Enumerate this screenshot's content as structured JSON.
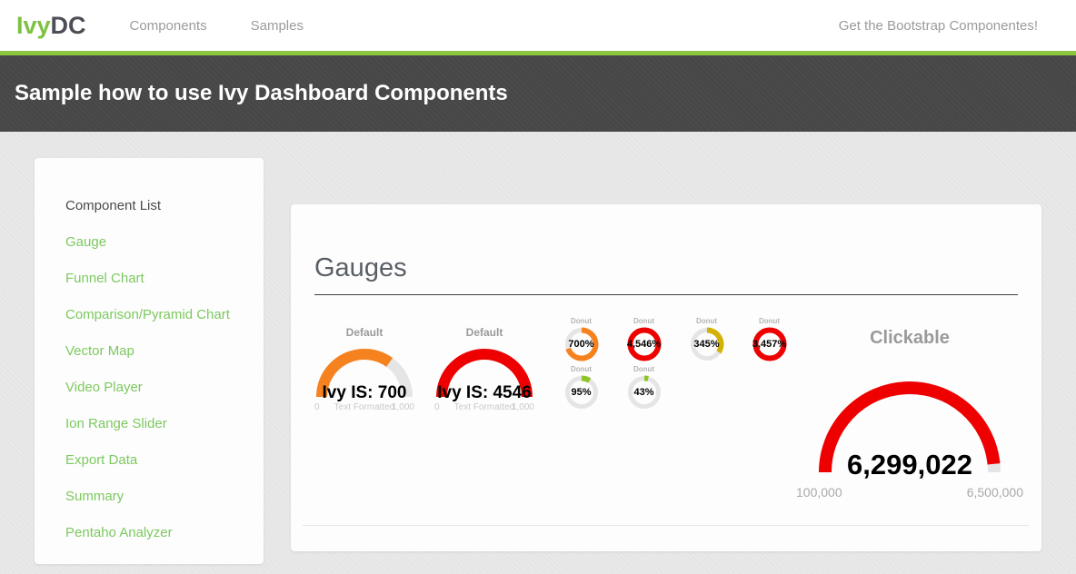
{
  "navbar": {
    "logo_ivy": "Ivy",
    "logo_dc": "DC",
    "items": [
      {
        "label": "Components"
      },
      {
        "label": "Samples"
      }
    ],
    "right_text": "Get the Bootstrap Componentes!"
  },
  "header": {
    "title": "Sample how to use Ivy Dashboard Components"
  },
  "sidebar": {
    "title": "Component List",
    "items": [
      {
        "label": "Gauge"
      },
      {
        "label": "Funnel Chart"
      },
      {
        "label": "Comparison/Pyramid Chart"
      },
      {
        "label": "Vector Map"
      },
      {
        "label": "Video Player"
      },
      {
        "label": "Ion Range Slider"
      },
      {
        "label": "Export Data"
      },
      {
        "label": "Summary"
      },
      {
        "label": "Pentaho Analyzer"
      }
    ]
  },
  "main": {
    "section_title": "Gauges",
    "default_gauges": [
      {
        "title": "Default",
        "value": 700,
        "value_text": "Ivy IS: 700",
        "min": 0,
        "max": 1000,
        "min_label": "0",
        "max_label": "1,000",
        "sub_label": "Text Formatted",
        "color": "#f6821f"
      },
      {
        "title": "Default",
        "value": 4546,
        "value_text": "Ivy IS: 4546",
        "min": 0,
        "max": 1000,
        "min_label": "0",
        "max_label": "1,000",
        "sub_label": "Text Formatted",
        "color": "#ee0000"
      }
    ],
    "donut_gauges": [
      {
        "title": "Donut",
        "value_text": "700%",
        "fraction": 0.7,
        "color": "#f6821f"
      },
      {
        "title": "Donut",
        "value_text": "4,546%",
        "fraction": 1.0,
        "color": "#ee0000"
      },
      {
        "title": "Donut",
        "value_text": "345%",
        "fraction": 0.345,
        "color": "#d4b106"
      },
      {
        "title": "Donut",
        "value_text": "3,457%",
        "fraction": 1.0,
        "color": "#ee0000"
      },
      {
        "title": "Donut",
        "value_text": "95%",
        "fraction": 0.095,
        "color": "#8fc426"
      },
      {
        "title": "Donut",
        "value_text": "43%",
        "fraction": 0.043,
        "color": "#8fc426"
      }
    ],
    "clickable_gauge": {
      "title": "Clickable",
      "value": 6299022,
      "value_text": "6,299,022",
      "min": 100000,
      "max": 6500000,
      "min_label": "100,000",
      "max_label": "6,500,000",
      "color": "#ee0000"
    }
  },
  "colors": {
    "accent_green": "#8cc63f",
    "link_green": "#7cc95f",
    "header_bg": "#474747",
    "gauge_track": "#e5e5e5"
  }
}
